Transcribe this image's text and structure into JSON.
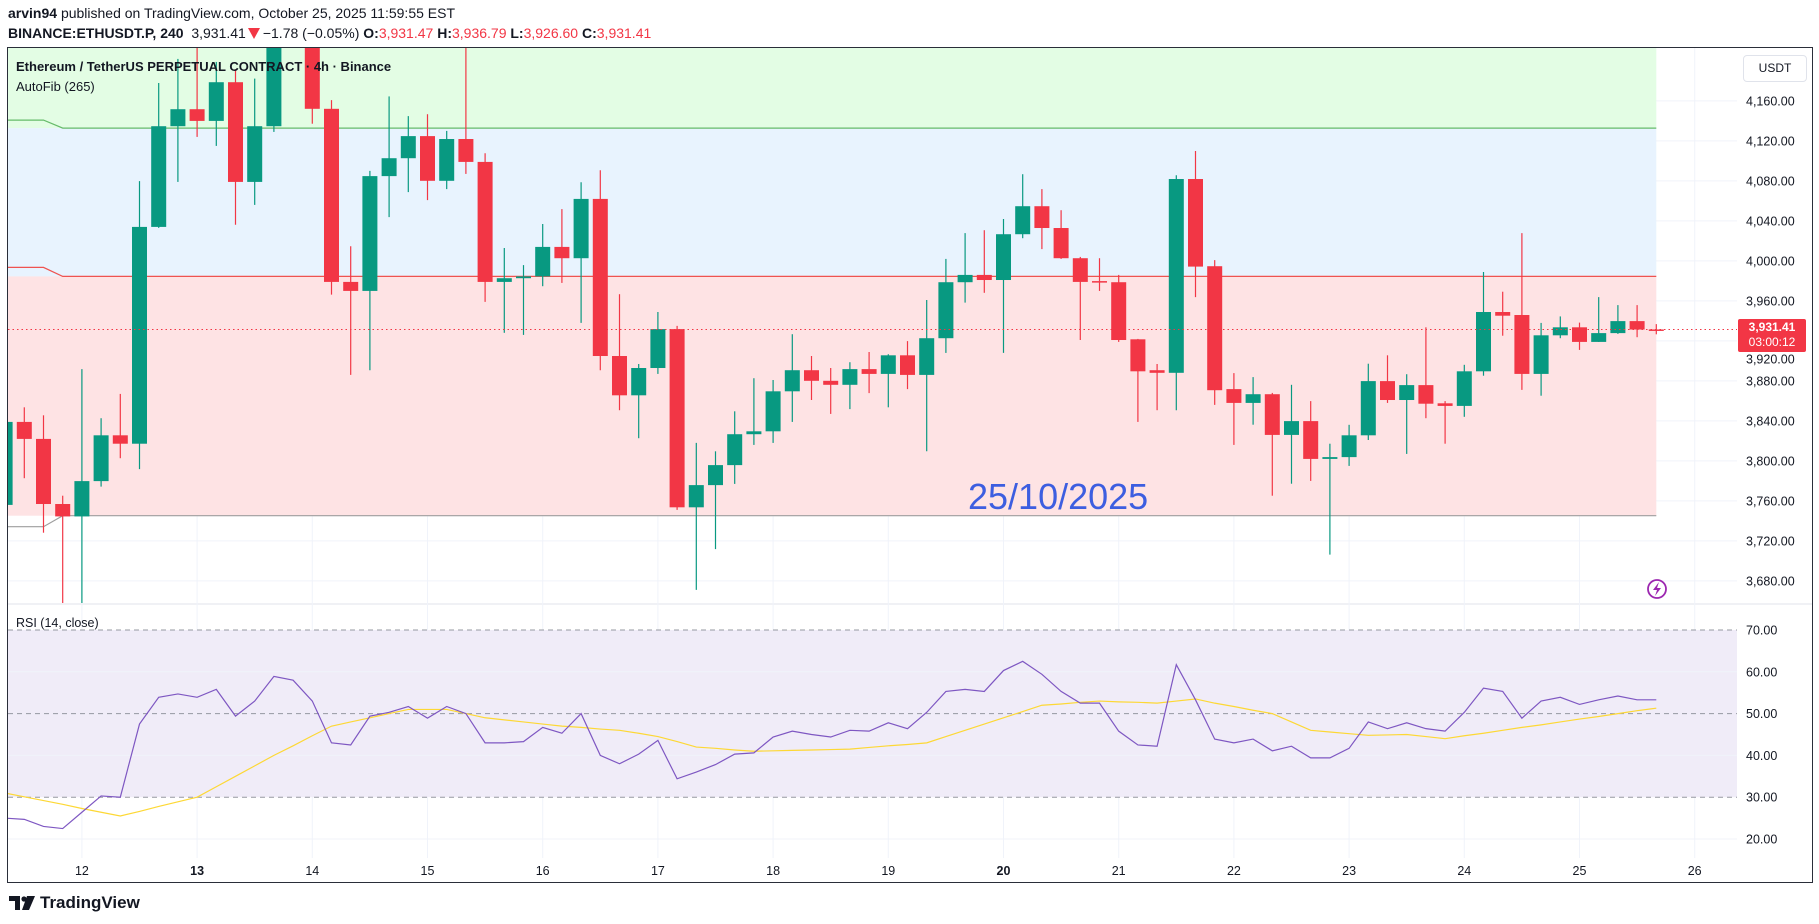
{
  "header": {
    "author": "arvin94",
    "published": "published on TradingView.com, October 25, 2025 11:59:55 EST",
    "symbol": "BINANCE:ETHUSDT.P, 240",
    "last": "3,931.41",
    "change": "−1.78 (−0.05%)",
    "o_label": "O:",
    "o": "3,931.47",
    "h_label": "H:",
    "h": "3,936.79",
    "l_label": "L:",
    "l": "3,926.60",
    "c_label": "C:",
    "c": "3,931.41"
  },
  "legend": {
    "title": "Ethereum / TetherUS PERPETUAL CONTRACT · 4h · Binance",
    "indicator": "AutoFib (265)"
  },
  "rsi_label": "RSI (14, close)",
  "currency": "USDT",
  "price_tag": {
    "price": "3,931.41",
    "countdown": "03:00:12"
  },
  "watermark": "25/10/2025",
  "brand": "TradingView",
  "colors": {
    "up": "#089981",
    "down": "#f23645",
    "rsi": "#7e57c2",
    "rsi_ma": "#fdd835",
    "watermark": "#3d5ee0"
  },
  "chart_data": [
    {
      "type": "candlestick",
      "title": "Ethereum / TetherUS PERPETUAL CONTRACT · 4h · Binance",
      "interval_hours": 4,
      "first_candle": "Oct 11 08:00",
      "ohlc_fields": [
        "open",
        "high",
        "low",
        "close"
      ],
      "candles": [
        [
          3756,
          3842,
          3754,
          3839
        ],
        [
          3839,
          3853.6,
          3782.7,
          3822
        ],
        [
          3822,
          3845.6,
          3728.2,
          3756.9
        ],
        [
          3756.9,
          3765.2,
          3655,
          3744.5
        ],
        [
          3744.5,
          3891.8,
          3655,
          3779.8
        ],
        [
          3779.8,
          3842.7,
          3774.3,
          3825.6
        ],
        [
          3825.6,
          3867,
          3802.7,
          3817.2
        ],
        [
          3817.2,
          4079.8,
          3791.8,
          4034
        ],
        [
          4034,
          4177.9,
          4033,
          4134.7
        ],
        [
          4134.7,
          4202,
          4079,
          4151.7
        ],
        [
          4151.7,
          4215,
          4124,
          4140
        ],
        [
          4140,
          4199,
          4115,
          4178.7
        ],
        [
          4178.7,
          4191.7,
          4036.1,
          4079
        ],
        [
          4079,
          4182.3,
          4056,
          4134.7
        ],
        [
          4134.7,
          4240,
          4129,
          4225
        ],
        [
          4225,
          4260,
          4215,
          4240
        ],
        [
          4240,
          4250,
          4137.2,
          4152.1
        ],
        [
          4152.1,
          4160.8,
          3966.3,
          3979
        ],
        [
          3979,
          4014.7,
          3886,
          3970
        ],
        [
          3970,
          4090,
          3890.7,
          4084.8
        ],
        [
          4084.8,
          4164.5,
          4043.8,
          4102.7
        ],
        [
          4102.7,
          4144.8,
          4068.8,
          4124.8
        ],
        [
          4124.8,
          4146.7,
          4060.8,
          4080.1
        ],
        [
          4080.1,
          4130,
          4071.8,
          4121.9
        ],
        [
          4121.9,
          4213,
          4087,
          4099
        ],
        [
          4099,
          4107.7,
          3959,
          3979
        ],
        [
          3979,
          4012.9,
          3928.1,
          3982.7
        ],
        [
          3982.7,
          3995.8,
          3926,
          3984.5
        ],
        [
          3984.5,
          4036.9,
          3974.7,
          4014
        ],
        [
          4014,
          4051.8,
          3978,
          4002.7
        ],
        [
          4002.7,
          4078.7,
          3938,
          4062
        ],
        [
          4062,
          4090.7,
          3890.7,
          3904.9
        ],
        [
          3904.9,
          3966.7,
          3850.7,
          3865.6
        ],
        [
          3865.6,
          3896.9,
          3822.7,
          3892.9
        ],
        [
          3892.9,
          3948.9,
          3887,
          3931.8
        ],
        [
          3931.8,
          3935,
          3751,
          3753.6
        ],
        [
          3753.6,
          3818,
          3671,
          3775.8
        ],
        [
          3775.8,
          3809.6,
          3711.8,
          3795.8
        ],
        [
          3795.8,
          3849.6,
          3777,
          3826.7
        ],
        [
          3826.7,
          3882.7,
          3816,
          3829.6
        ],
        [
          3829.6,
          3880.9,
          3818,
          3869.6
        ],
        [
          3869.6,
          3926.7,
          3839,
          3890.7
        ],
        [
          3890.7,
          3904.9,
          3860.9,
          3880.1
        ],
        [
          3880.1,
          3892.9,
          3847,
          3876.1
        ],
        [
          3876.1,
          3898.7,
          3851.8,
          3891.8
        ],
        [
          3891.8,
          3908.9,
          3867.8,
          3887
        ],
        [
          3887,
          3906.7,
          3853.6,
          3905.6
        ],
        [
          3905.6,
          3919.8,
          3871.8,
          3886
        ],
        [
          3886,
          3960.9,
          3809.6,
          3922.7
        ],
        [
          3922.7,
          4002,
          3908,
          3978.7
        ],
        [
          3978.7,
          4027.8,
          3958.3,
          3986
        ],
        [
          3986,
          4030.7,
          3968.1,
          3980.9
        ],
        [
          3980.9,
          4041.9,
          3908,
          4026.7
        ],
        [
          4026.7,
          4086.7,
          4022.7,
          4054.7
        ],
        [
          4054.7,
          4071.8,
          4011.8,
          4032.9
        ],
        [
          4032.9,
          4050.7,
          4002,
          4002.7
        ],
        [
          4002.7,
          4004,
          3920.9,
          3979
        ],
        [
          3979.8,
          4002.7,
          3970,
          3978.3
        ],
        [
          3978.7,
          3986,
          3919,
          3920.9
        ],
        [
          3921.6,
          3922,
          3839,
          3889.6
        ],
        [
          3890.7,
          3896.9,
          3850.7,
          3888.1
        ],
        [
          3888.1,
          4085.6,
          3850.7,
          4081.9
        ],
        [
          4081.9,
          4109.9,
          3963.8,
          3994.3
        ],
        [
          3994.7,
          4000.8,
          3856,
          3870.7
        ],
        [
          3871.8,
          3887.8,
          3816,
          3858
        ],
        [
          3858,
          3883.8,
          3836.2,
          3866.7
        ],
        [
          3866.7,
          3868,
          3765.2,
          3826
        ],
        [
          3826,
          3876.1,
          3777.2,
          3839.8
        ],
        [
          3839.8,
          3859.8,
          3780,
          3802
        ],
        [
          3802,
          3817.2,
          3706.3,
          3803.8
        ],
        [
          3803.8,
          3836.1,
          3795,
          3825.6
        ],
        [
          3825.6,
          3897.2,
          3820.9,
          3879.8
        ],
        [
          3879.8,
          3905.6,
          3858,
          3860.9
        ],
        [
          3860.9,
          3886.7,
          3807,
          3875.8
        ],
        [
          3875.8,
          3933.6,
          3842.7,
          3857.2
        ],
        [
          3857.6,
          3859.8,
          3817.2,
          3855
        ],
        [
          3855,
          3896.1,
          3844.1,
          3889.6
        ],
        [
          3889.6,
          3988.9,
          3885.2,
          3948.9
        ],
        [
          3948.9,
          3969.2,
          3925.2,
          3945.2
        ],
        [
          3945.9,
          4027.8,
          3871,
          3887
        ],
        [
          3887,
          3938,
          3865.2,
          3925.6
        ],
        [
          3925.6,
          3944.5,
          3922.7,
          3933.6
        ],
        [
          3933.6,
          3938.3,
          3911,
          3919
        ],
        [
          3919,
          3963.8,
          3919,
          3927.8
        ],
        [
          3927.8,
          3955.8,
          3927,
          3939.8
        ],
        [
          3939.8,
          3955.8,
          3923.7,
          3931.4
        ],
        [
          3931.47,
          3936.79,
          3926.6,
          3931.41
        ]
      ],
      "last_price": 3931.41,
      "fib_levels": [
        4132.8,
        3984.5,
        3745.2
      ],
      "y_ticks": [
        4160,
        4120,
        4080,
        4040,
        4000,
        3960,
        3920,
        3880,
        3840,
        3800,
        3760,
        3720,
        3680
      ],
      "y_tick_labels": [
        "4,160.00",
        "4,120.00",
        "4,080.00",
        "4,040.00",
        "4,000.00",
        "3,960.00",
        "3,920.00",
        "3,880.00",
        "3,840.00",
        "3,800.00",
        "3,760.00",
        "3,720.00",
        "3,680.00"
      ],
      "x_ticks": [
        "12",
        "13",
        "14",
        "15",
        "16",
        "17",
        "18",
        "19",
        "20",
        "21",
        "22",
        "23",
        "24",
        "25",
        "26"
      ],
      "x_tick_bold": [
        "13",
        "20"
      ]
    },
    {
      "type": "line",
      "title": "RSI (14, close)",
      "ylim": [
        20,
        70
      ],
      "bands": [
        30,
        50,
        70
      ],
      "y_tick_labels": [
        "70.00",
        "60.00",
        "50.00",
        "40.00",
        "30.00",
        "20.00"
      ],
      "y_ticks": [
        70,
        60,
        50,
        40,
        30,
        20
      ],
      "series": [
        {
          "name": "RSI",
          "values": [
            25,
            24.7,
            23,
            22.5,
            26.4,
            30.3,
            30,
            47.5,
            53.9,
            54.7,
            53.9,
            55.8,
            49.4,
            53,
            58.9,
            58,
            53,
            43,
            42.5,
            49.4,
            50.3,
            51.7,
            48.9,
            51.7,
            50,
            43,
            43,
            43.3,
            46.7,
            45.3,
            50,
            40,
            38,
            40.3,
            43.6,
            34.4,
            36,
            37.8,
            40.3,
            40.6,
            44.4,
            45.8,
            45,
            44.4,
            46,
            45.8,
            47.8,
            46.4,
            50.3,
            55.3,
            55.8,
            55.3,
            60.3,
            62.5,
            59.4,
            55.3,
            52.5,
            52.5,
            45.8,
            42.5,
            42.2,
            61.7,
            53.3,
            43.9,
            43,
            43.9,
            41.1,
            42.2,
            39.4,
            39.4,
            41.7,
            48,
            46.4,
            47.8,
            46.4,
            45.8,
            50.3,
            56.1,
            55.3,
            48.9,
            53,
            53.9,
            52.2,
            53.3,
            54.2,
            53.3,
            53.3
          ]
        },
        {
          "name": "RSI MA",
          "values": [
            31,
            30.1,
            29.2,
            28.3,
            27.3,
            26.4,
            25.5,
            26.6,
            27.8,
            28.9,
            30,
            32.5,
            35,
            37.5,
            40,
            42.3,
            44.7,
            47,
            48,
            49,
            50,
            51,
            51,
            51,
            50,
            49,
            48.5,
            48,
            47.5,
            47,
            46.7,
            46.3,
            46,
            45.3,
            44.5,
            43.3,
            42,
            41.7,
            41.3,
            41,
            41.1,
            41.2,
            41.3,
            41.4,
            41.5,
            41.9,
            42.3,
            42.6,
            43,
            44.5,
            46,
            47.5,
            49,
            50.5,
            52,
            52.3,
            52.7,
            53,
            52.8,
            52.7,
            52.5,
            53,
            53.5,
            52.5,
            51.7,
            50.8,
            50,
            48,
            46,
            45.6,
            45.2,
            44.8,
            44.9,
            45,
            44.5,
            44,
            44.7,
            45.3,
            46,
            46.7,
            47.3,
            48,
            48.7,
            49.3,
            50,
            50.7,
            51.3
          ]
        }
      ]
    }
  ]
}
